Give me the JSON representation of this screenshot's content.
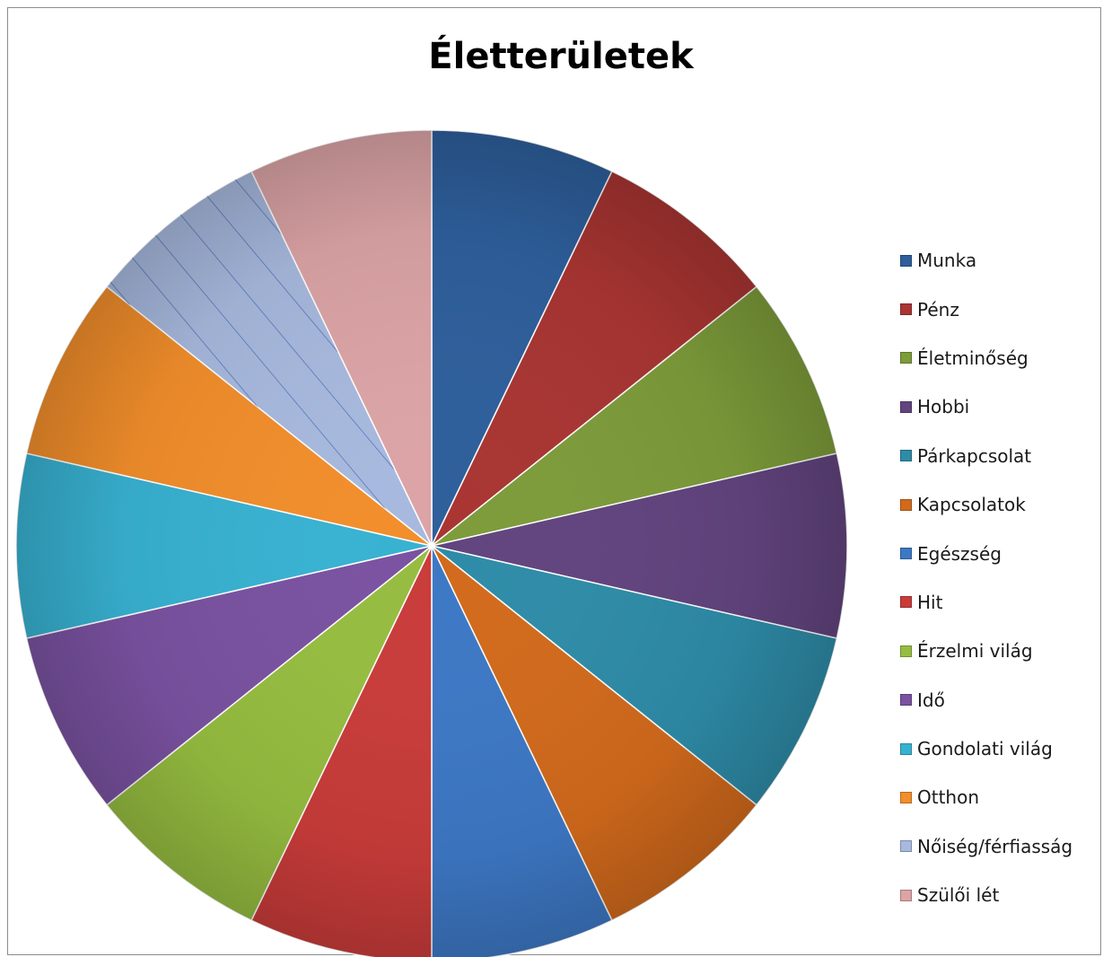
{
  "chart_data": {
    "type": "pie",
    "title": "Életterületek",
    "categories": [
      "Munka",
      "Pénz",
      "Életminőség",
      "Hobbi",
      "Párkapcsolat",
      "Kapcsolatok",
      "Egészség",
      "Hit",
      "Érzelmi világ",
      "Idő",
      "Gondolati világ",
      "Otthon",
      "Nőiség/férfiasság",
      "Szülői lét"
    ],
    "values": [
      1,
      1,
      1,
      1,
      1,
      1,
      1,
      1,
      1,
      1,
      1,
      1,
      1,
      1
    ],
    "colors": [
      "#2e5f9c",
      "#a93532",
      "#7d9c3a",
      "#62447f",
      "#2e8ca8",
      "#d26a1c",
      "#3d78c5",
      "#c93c3a",
      "#96bd40",
      "#7a52a1",
      "#38b2d2",
      "#f28e2b",
      "#a7b9de",
      "#dca4a6"
    ],
    "legend": "right",
    "start_angle_deg": 0,
    "direction": "clockwise"
  }
}
